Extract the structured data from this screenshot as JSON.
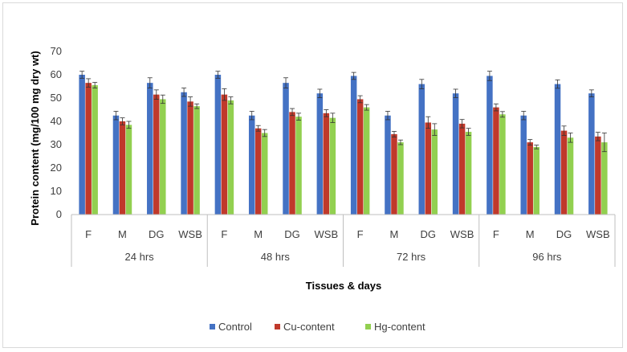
{
  "chart_data": {
    "type": "bar",
    "title": "",
    "xlabel": "Tissues & days",
    "ylabel": "Protein content (mg/100 mg dry wt)",
    "ylim": [
      0,
      70
    ],
    "yticks": [
      0,
      10,
      20,
      30,
      40,
      50,
      60,
      70
    ],
    "grid": false,
    "legend_position": "bottom",
    "groups": [
      "24 hrs",
      "48 hrs",
      "72 hrs",
      "96 hrs"
    ],
    "tissues": [
      "F",
      "M",
      "DG",
      "WSB"
    ],
    "categories": [
      "F",
      "M",
      "DG",
      "WSB",
      "F",
      "M",
      "DG",
      "WSB",
      "F",
      "M",
      "DG",
      "WSB",
      "F",
      "M",
      "DG",
      "WSB"
    ],
    "series": [
      {
        "name": "Control",
        "color": "#4472C4",
        "values": [
          60,
          42.5,
          56.5,
          52.5,
          60,
          42.5,
          56.5,
          52,
          59.5,
          42.5,
          56,
          52,
          59.5,
          42.5,
          56,
          52
        ],
        "errors": [
          1.5,
          1.8,
          2.2,
          1.8,
          1.5,
          1.8,
          2.2,
          1.8,
          1.5,
          1.8,
          2,
          1.8,
          2,
          1.8,
          1.8,
          1.5
        ]
      },
      {
        "name": "Cu-content",
        "color": "#C0392B",
        "values": [
          56.5,
          40,
          51.5,
          48.5,
          51.5,
          37,
          44,
          43.5,
          49.5,
          34.5,
          39.5,
          39,
          46,
          31,
          36,
          33.5
        ],
        "errors": [
          1.8,
          1.5,
          2,
          2,
          2.5,
          1.2,
          1.5,
          1.5,
          1.5,
          1.2,
          2.5,
          1.8,
          1.5,
          1.2,
          2,
          1.8
        ]
      },
      {
        "name": "Hg-content",
        "color": "#92D050",
        "values": [
          55.5,
          38.5,
          49.5,
          46.5,
          49,
          35,
          42,
          41.5,
          46,
          31,
          36.5,
          35.5,
          43,
          29,
          33,
          31
        ],
        "errors": [
          1.2,
          1.5,
          1.8,
          1,
          1.5,
          1.5,
          1.5,
          2,
          1.2,
          1,
          2.5,
          1.5,
          1.2,
          0.8,
          2,
          4
        ]
      }
    ]
  }
}
